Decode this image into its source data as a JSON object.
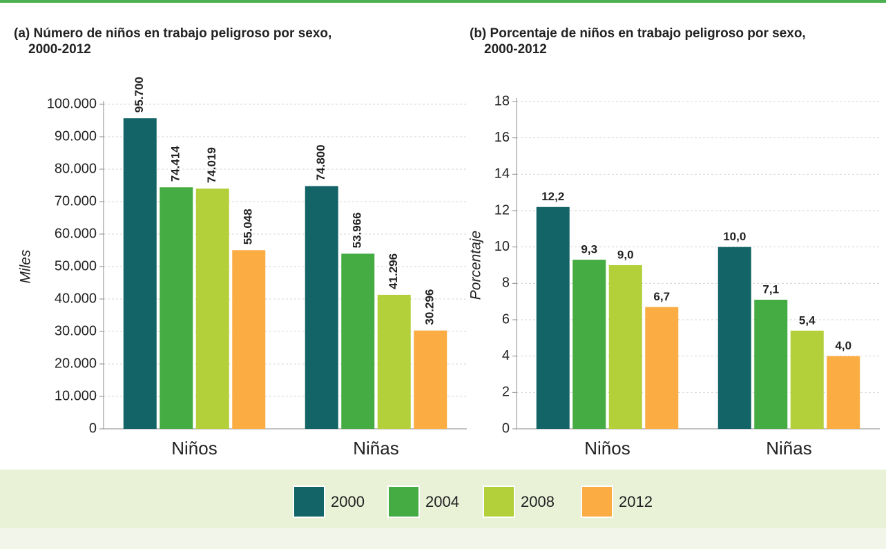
{
  "chart_data": [
    {
      "type": "bar",
      "title": [
        "(a) Número de niños en trabajo peligroso por sexo,",
        "2000-2012"
      ],
      "y_label": "Miles",
      "categories": [
        "Niños",
        "Niñas"
      ],
      "series": [
        {
          "name": "2000",
          "color": "#136467",
          "values": [
            95700,
            74800
          ],
          "value_labels": [
            "95.700",
            "74.800"
          ]
        },
        {
          "name": "2004",
          "color": "#45ab43",
          "values": [
            74414,
            53966
          ],
          "value_labels": [
            "74.414",
            "53.966"
          ]
        },
        {
          "name": "2008",
          "color": "#b3cf3a",
          "values": [
            74019,
            41296
          ],
          "value_labels": [
            "74.019",
            "41.296"
          ]
        },
        {
          "name": "2012",
          "color": "#fbad44",
          "values": [
            55048,
            30296
          ],
          "value_labels": [
            "55.048",
            "30.296"
          ]
        }
      ],
      "ylim": [
        0,
        100000
      ],
      "yticks": [
        0,
        {
          "value": 10000,
          "label": "10.000"
        },
        {
          "value": 20000,
          "label": "20.000"
        },
        {
          "value": 30000,
          "label": "30.000"
        },
        {
          "value": 40000,
          "label": "40.000"
        },
        {
          "value": 50000,
          "label": "50.000"
        },
        {
          "value": 60000,
          "label": "60.000"
        },
        {
          "value": 70000,
          "label": "70.000"
        },
        {
          "value": 80000,
          "label": "80.000"
        },
        {
          "value": 90000,
          "label": "90.000"
        },
        {
          "value": 100000,
          "label": "100.000"
        }
      ],
      "grid": true
    },
    {
      "type": "bar",
      "title": [
        "(b) Porcentaje de niños en trabajo peligroso por sexo,",
        "2000-2012"
      ],
      "y_label": "Porcentaje",
      "categories": [
        "Niños",
        "Niñas"
      ],
      "series": [
        {
          "name": "2000",
          "color": "#136467",
          "values": [
            12.2,
            10.0
          ],
          "value_labels": [
            "12,2",
            "10,0"
          ]
        },
        {
          "name": "2004",
          "color": "#45ab43",
          "values": [
            9.3,
            7.1
          ],
          "value_labels": [
            "9,3",
            "7,1"
          ]
        },
        {
          "name": "2008",
          "color": "#b3cf3a",
          "values": [
            9.0,
            5.4
          ],
          "value_labels": [
            "9,0",
            "5,4"
          ]
        },
        {
          "name": "2012",
          "color": "#fbad44",
          "values": [
            6.7,
            4.0
          ],
          "value_labels": [
            "6,7",
            "4,0"
          ]
        }
      ],
      "ylim": [
        0,
        18
      ],
      "yticks": [
        0,
        2,
        4,
        6,
        8,
        10,
        12,
        14,
        16,
        18
      ],
      "grid": true
    }
  ]
}
